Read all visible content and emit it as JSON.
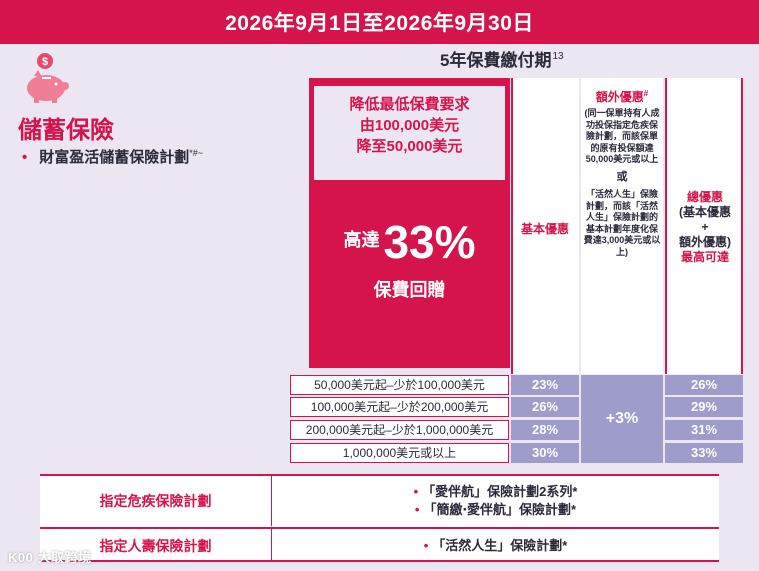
{
  "header": {
    "date_range": "2026年9月1日至2026年9月30日"
  },
  "period": {
    "label": "5年保費繳付期",
    "note": "13"
  },
  "product": {
    "category": "儲蓄保險",
    "item": "財富盈活儲蓄保險計劃",
    "item_mark": "*#~"
  },
  "promo": {
    "line1": "降低最低保費要求",
    "line2": "由100,000美元",
    "line3": "降至50,000美元",
    "prefix": "高達",
    "percent": "33%",
    "suffix": "保費回贈"
  },
  "columns": {
    "basic": "基本優惠",
    "extra": "額外優惠",
    "extra_mark": "#",
    "extra_body_1": "(同一保單持有人成功投保指定危疾保險計劃，而該保單的原有投保額達50,000美元或以上",
    "extra_or": "或",
    "extra_body_2": "「活然人生」保險計劃，而該「活然人生」保險計劃的基本計劃年度化保費達3,000美元或以上)",
    "total_1": "總優惠",
    "total_2": "(基本優惠",
    "total_3": "+",
    "total_4": "額外優惠)",
    "total_5": "最高可達"
  },
  "tiers": [
    {
      "label": "50,000美元起–少於100,000美元",
      "basic": "23%",
      "total": "26%"
    },
    {
      "label": "100,000美元起–少於200,000美元",
      "basic": "26%",
      "total": "29%"
    },
    {
      "label": "200,000美元起–少於1,000,000美元",
      "basic": "28%",
      "total": "31%"
    },
    {
      "label": "1,000,000美元或以上",
      "basic": "30%",
      "total": "33%"
    }
  ],
  "extra_value": "+3%",
  "plans": [
    {
      "name": "指定危疾保險計劃",
      "items": [
        "「愛伴航」保險計劃2系列*",
        "「簡繳‧愛伴航」保險計劃*"
      ]
    },
    {
      "name": "指定人壽保險計劃",
      "items": [
        "「活然人生」保險計劃*"
      ]
    }
  ],
  "bullet": "•",
  "watermark": "K00 大取跨境",
  "colors": {
    "brand": "#d5144b",
    "tier_fill": "#9d9ccb",
    "background": "#ebe6f1"
  },
  "icons": {
    "piggy": "piggy-bank-icon"
  }
}
